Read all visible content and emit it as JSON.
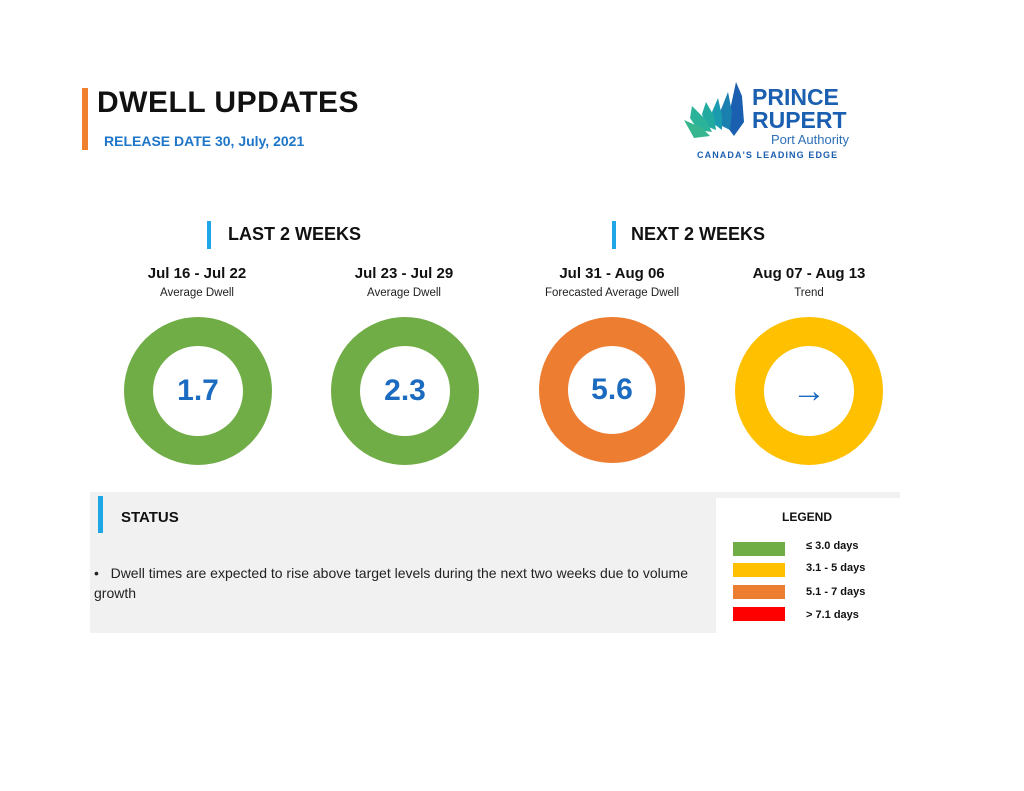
{
  "header": {
    "title": "DWELL UPDATES",
    "release": "RELEASE DATE 30, July, 2021"
  },
  "logo": {
    "line1": "PRINCE",
    "line2": "RUPERT",
    "line3": "Port Authority",
    "tagline": "CANADA'S LEADING EDGE"
  },
  "sections": {
    "last": "LAST 2 WEEKS",
    "next": "NEXT 2 WEEKS"
  },
  "periods": [
    {
      "dates": "Jul 16 - Jul 22",
      "label": "Average Dwell",
      "value": "1.7",
      "color": "#70ad47"
    },
    {
      "dates": "Jul 23 - Jul 29",
      "label": "Average Dwell",
      "value": "2.3",
      "color": "#70ad47"
    },
    {
      "dates": "Jul 31 - Aug 06",
      "label": "Forecasted Average Dwell",
      "value": "5.6",
      "color": "#ed7d31"
    },
    {
      "dates": "Aug 07 - Aug 13",
      "label": "Trend",
      "value": "→",
      "color": "#ffc000"
    }
  ],
  "status": {
    "title": "STATUS",
    "bullet": "•",
    "text": "Dwell times are expected to rise above target levels during the next two weeks due to volume growth"
  },
  "legend": {
    "title": "LEGEND",
    "items": [
      {
        "label": "≤ 3.0 days",
        "color": "#70ad47"
      },
      {
        "label": "3.1 - 5 days",
        "color": "#ffc000"
      },
      {
        "label": "5.1 - 7 days",
        "color": "#ed7d31"
      },
      {
        "label": "> 7.1 days",
        "color": "#ff0000"
      }
    ]
  }
}
